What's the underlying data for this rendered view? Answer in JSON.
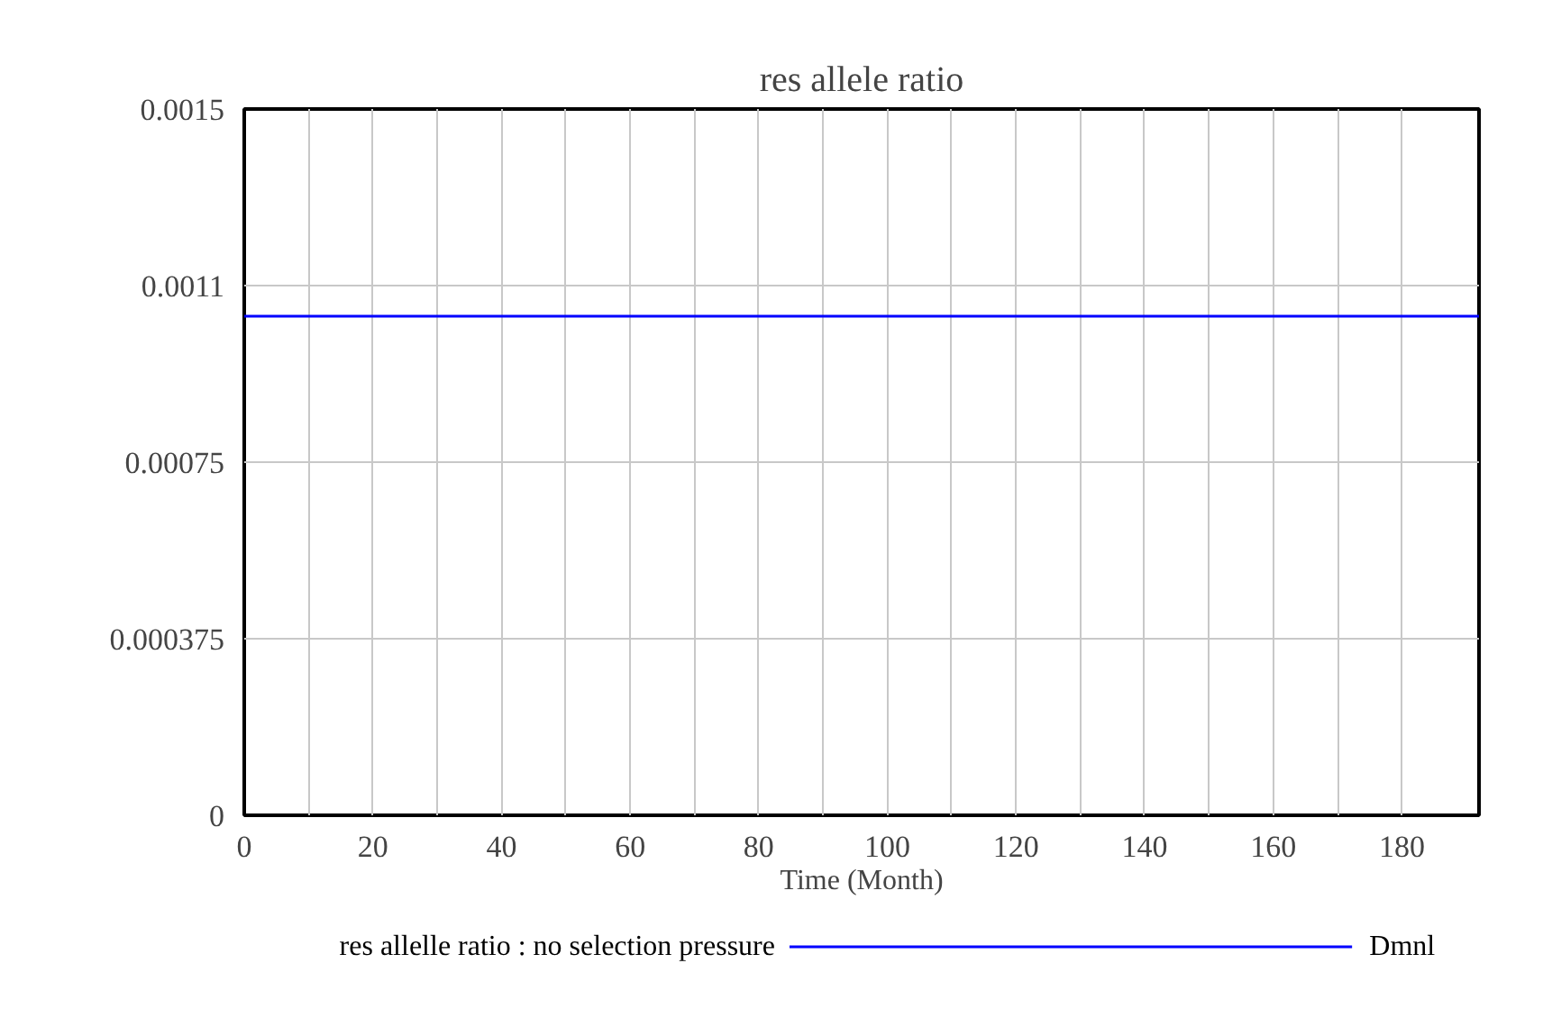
{
  "chart_data": {
    "type": "line",
    "title": "res allele ratio",
    "xlabel": "Time (Month)",
    "x": [
      0,
      192
    ],
    "series": [
      {
        "name": "res allelle ratio : no selection pressure",
        "color": "#0000ff",
        "values": [
          0.00106,
          0.00106
        ]
      }
    ],
    "annotations": [
      "Dmnl"
    ],
    "xlim": [
      0,
      192
    ],
    "xticks": [
      0,
      {
        "value": 10,
        "label": null
      },
      20,
      {
        "value": 30,
        "label": null
      },
      40,
      {
        "value": 50,
        "label": null
      },
      60,
      {
        "value": 70,
        "label": null
      },
      80,
      {
        "value": 90,
        "label": null
      },
      100,
      {
        "value": 110,
        "label": null
      },
      120,
      {
        "value": 130,
        "label": null
      },
      140,
      {
        "value": 150,
        "label": null
      },
      160,
      {
        "value": 170,
        "label": null
      },
      180
    ],
    "ylim": [
      0,
      0.0015
    ],
    "yticks": [
      0,
      0.000375,
      0.00075,
      {
        "value": 0.001125,
        "label": "0.0011"
      },
      0.0015
    ],
    "grid": true,
    "legend": "bottom",
    "line_style": "solid"
  }
}
